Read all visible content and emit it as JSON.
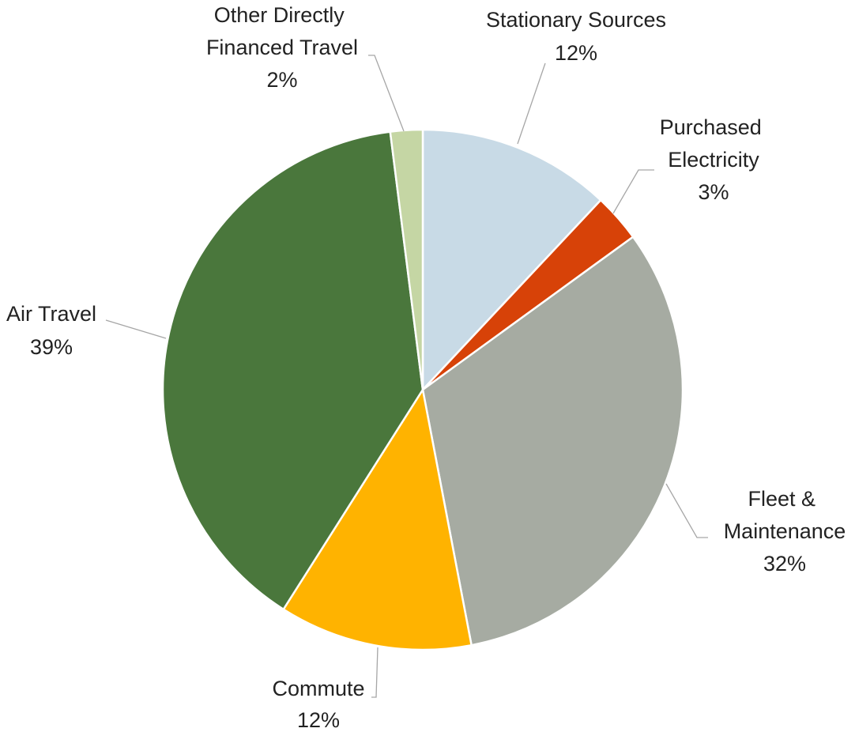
{
  "chart_data": {
    "type": "pie",
    "slices": [
      {
        "label": "Stationary Sources",
        "value": 12,
        "value_label": "12%",
        "color": "#c8dae6"
      },
      {
        "label": "Purchased Electricity",
        "value": 3,
        "value_label": "3%",
        "color": "#d74208"
      },
      {
        "label": "Fleet & Maintenance",
        "value": 32,
        "value_label": "32%",
        "color": "#a6aba2"
      },
      {
        "label": "Commute",
        "value": 12,
        "value_label": "12%",
        "color": "#ffb300"
      },
      {
        "label": "Air Travel",
        "value": 39,
        "value_label": "39%",
        "color": "#4a773c"
      },
      {
        "label": "Other Directly Financed Travel",
        "value": 2,
        "value_label": "2%",
        "color": "#c5d6a4"
      }
    ],
    "start_angle_deg": 0,
    "direction": "clockwise",
    "legend": "none",
    "title": ""
  }
}
